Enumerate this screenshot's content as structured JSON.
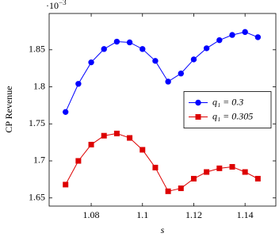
{
  "chart_data": {
    "type": "line",
    "x_label": "s",
    "y_label": "CP Revenue",
    "y_scale": {
      "base": "·10",
      "exponent": "−3"
    },
    "x": [
      1.07,
      1.075,
      1.08,
      1.085,
      1.09,
      1.095,
      1.1,
      1.105,
      1.11,
      1.115,
      1.12,
      1.125,
      1.13,
      1.135,
      1.14,
      1.145
    ],
    "series": [
      {
        "name": "q₁ = 0.3",
        "color": "#0000ff",
        "marker": "circle",
        "values": [
          1.766,
          1.804,
          1.833,
          1.851,
          1.861,
          1.86,
          1.851,
          1.835,
          1.807,
          1.818,
          1.837,
          1.852,
          1.863,
          1.87,
          1.874,
          1.867
        ]
      },
      {
        "name": "q₁ = 0.305",
        "color": "#dd0000",
        "marker": "square",
        "values": [
          1.668,
          1.7,
          1.722,
          1.734,
          1.737,
          1.731,
          1.715,
          1.691,
          1.659,
          1.663,
          1.676,
          1.685,
          1.69,
          1.692,
          1.685,
          1.676
        ]
      }
    ],
    "xlim": [
      1.0636,
      1.152
    ],
    "ylim": [
      1.639,
      1.899
    ],
    "xticks": [
      1.08,
      1.1,
      1.12,
      1.14
    ],
    "yticks": [
      1.65,
      1.7,
      1.75,
      1.8,
      1.85
    ],
    "legend": "right"
  }
}
